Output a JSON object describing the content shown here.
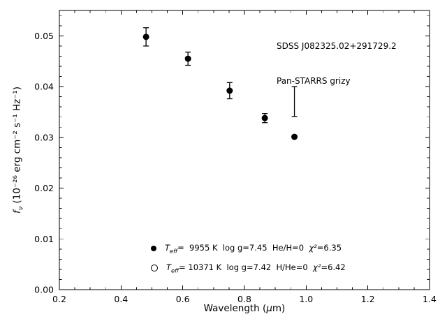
{
  "figure": {
    "annotation": {
      "line1": "SDSS J082325.02+291729.2",
      "line2": "Pan-STARRS grizy"
    },
    "xlabel_parts": {
      "pre": "Wavelength (",
      "mu": "μ",
      "post": "m)"
    },
    "ylabel_parts": {
      "symbol": "f",
      "symbol_sub": "ν",
      "units": " (10⁻²⁶ erg cm⁻² s⁻¹ Hz⁻¹)"
    }
  },
  "chart_data": {
    "type": "scatter",
    "title": "",
    "xlabel": "Wavelength (um)",
    "ylabel": "f_nu (10^-26 erg cm^-2 s^-1 Hz^-1)",
    "xlim": [
      0.2,
      1.4
    ],
    "ylim": [
      0.0,
      0.055
    ],
    "xticks": [
      0.2,
      0.4,
      0.6,
      0.8,
      1.0,
      1.2,
      1.4
    ],
    "yticks": [
      0.0,
      0.01,
      0.02,
      0.03,
      0.04,
      0.05
    ],
    "x_minor_step": 0.05,
    "y_minor_step": 0.002,
    "grid": false,
    "point_color": "#000000",
    "series": [
      {
        "name": "Pan-STARRS grizy photometry",
        "marker": "filled-circle",
        "points": [
          {
            "x": 0.481,
            "y": 0.0498,
            "yerr": 0.0018
          },
          {
            "x": 0.617,
            "y": 0.0455,
            "yerr": 0.0013
          },
          {
            "x": 0.752,
            "y": 0.0392,
            "yerr": 0.0016
          },
          {
            "x": 0.866,
            "y": 0.0338,
            "yerr": 0.0009
          },
          {
            "x": 0.962,
            "y": 0.0301,
            "yerr": 0.0
          }
        ]
      }
    ],
    "extra_errorbars": [
      {
        "x": 0.962,
        "ylo": 0.0341,
        "yhi": 0.04
      }
    ],
    "legend": {
      "position": "lower-center",
      "entries": [
        {
          "marker": "filled-circle",
          "t": "T",
          "t_sub": "eff",
          "text": "=  9955 K  log g=7.45  He/H=0  ",
          "chi_sym": "χ²",
          "chi_val": "=6.35"
        },
        {
          "marker": "open-circle",
          "t": "T",
          "t_sub": "eff",
          "text": "= 10371 K  log g=7.42  H/He=0  ",
          "chi_sym": "χ²",
          "chi_val": "=6.42"
        }
      ]
    },
    "annotations": [
      "SDSS J082325.02+291729.2",
      "Pan-STARRS grizy"
    ]
  }
}
